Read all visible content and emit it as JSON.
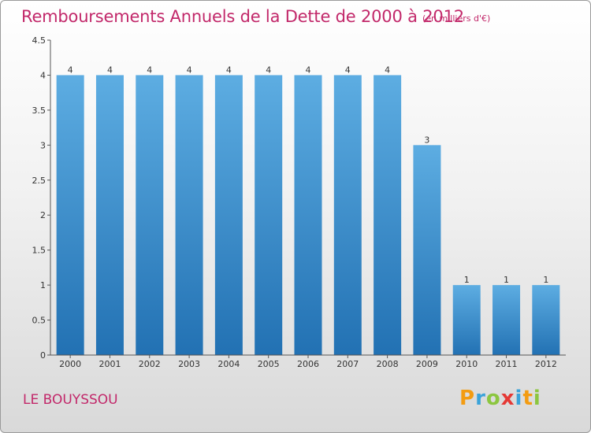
{
  "header": {
    "title": "Remboursements Annuels de la Dette de 2000 à 2012",
    "unit": "(en milliers d'€)"
  },
  "footer": {
    "commune": "LE BOUYSSOU",
    "logo": "Proxiti"
  },
  "colors": {
    "title": "#c2286a",
    "bar_light": "#5dade2",
    "bar_dark": "#2271b3"
  },
  "chart_data": {
    "type": "bar",
    "title": "Remboursements Annuels de la Dette de 2000 à 2012",
    "categories": [
      "2000",
      "2001",
      "2002",
      "2003",
      "2004",
      "2005",
      "2006",
      "2007",
      "2008",
      "2009",
      "2010",
      "2011",
      "2012"
    ],
    "values": [
      4,
      4,
      4,
      4,
      4,
      4,
      4,
      4,
      4,
      3,
      1,
      1,
      1
    ],
    "data_labels": [
      "4",
      "4",
      "4",
      "4",
      "4",
      "4",
      "4",
      "4",
      "4",
      "3",
      "1",
      "1",
      "1"
    ],
    "yticks": [
      "0",
      "0.5",
      "1",
      "1.5",
      "2",
      "2.5",
      "3",
      "3.5",
      "4",
      "4.5"
    ],
    "ylim": [
      0,
      4.5
    ],
    "grid": false,
    "legend": "none"
  }
}
